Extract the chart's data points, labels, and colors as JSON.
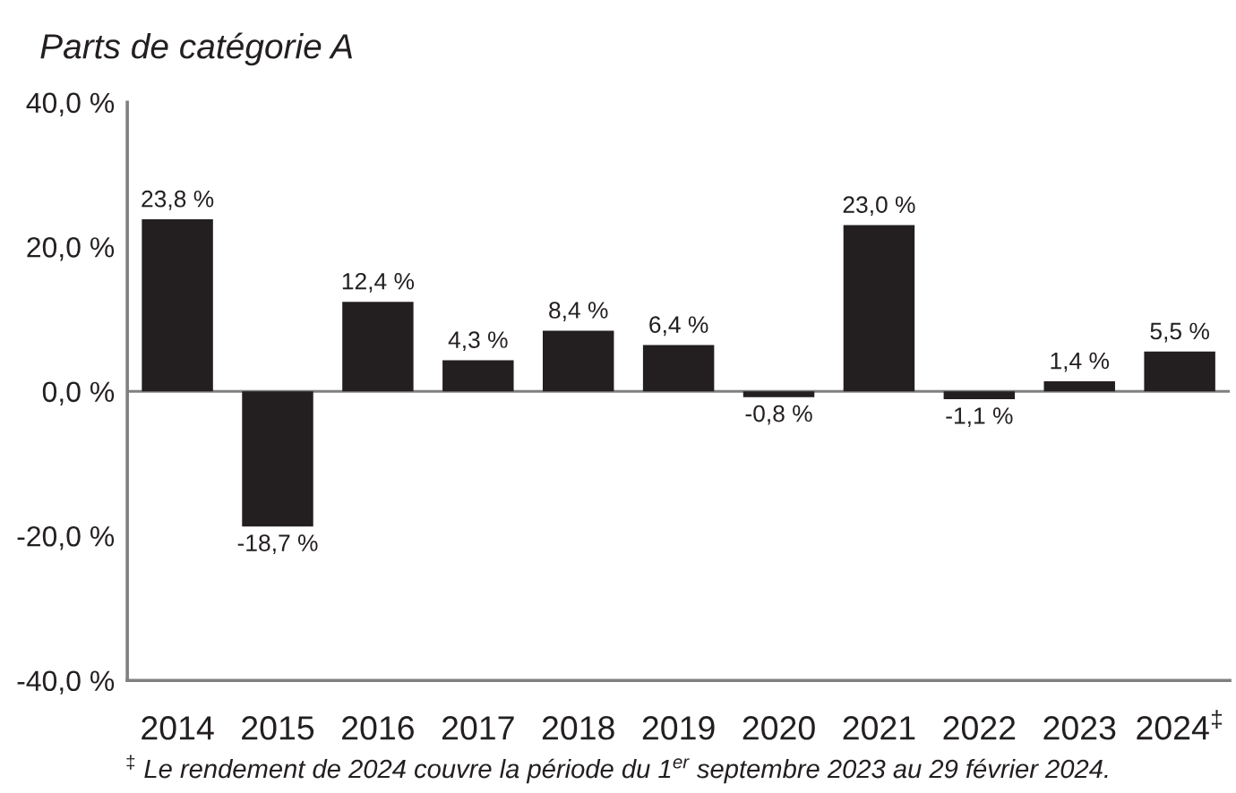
{
  "chart_data": {
    "type": "bar",
    "title": "Parts de catégorie A",
    "categories": [
      "2014",
      "2015",
      "2016",
      "2017",
      "2018",
      "2019",
      "2020",
      "2021",
      "2022",
      "2023",
      "2024$^{‡}$"
    ],
    "values": [
      23.8,
      -18.7,
      12.4,
      4.3,
      8.4,
      6.4,
      -0.8,
      23.0,
      -1.1,
      1.4,
      5.5
    ],
    "value_labels": [
      "23,8 %",
      "-18,7 %",
      "12,4 %",
      "4,3 %",
      "8,4 %",
      "6,4 %",
      "-0,8 %",
      "23,0 %",
      "-1,1 %",
      "1,4 %",
      "5,5 %"
    ],
    "color": "#231f20",
    "ylim": [
      -40,
      40
    ],
    "yticks": [
      {
        "value": -40,
        "label": "-40,0 %"
      },
      {
        "value": -20,
        "label": "-20,0 %"
      },
      {
        "value": 0,
        "label": "0,0 %"
      },
      {
        "value": 20,
        "label": "20,0 %"
      },
      {
        "value": 40,
        "label": "40,0 %"
      }
    ],
    "ref_lines": [
      {
        "axis": "y",
        "value": 0,
        "color": "#808080"
      }
    ],
    "annotations": [
      "$^{‡}$ Le rendement de 2024 couvre la période du 1$^{er}$ septembre 2023 au 29 février 2024."
    ]
  }
}
